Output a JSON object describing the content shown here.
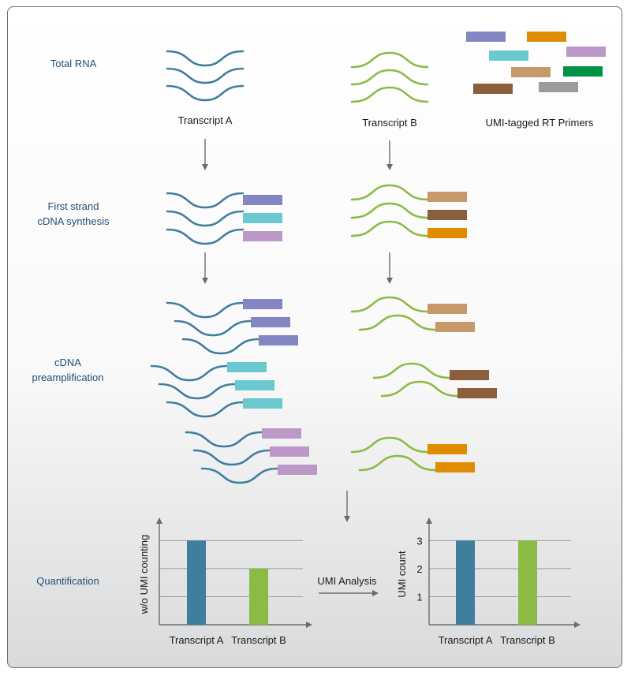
{
  "steps": {
    "total_rna": "Total RNA",
    "first_strand_line1": "First strand",
    "first_strand_line2": "cDNA synthesis",
    "preamp_line1": "cDNA",
    "preamp_line2": "preamplification",
    "quantification": "Quantification"
  },
  "labels": {
    "transcript_a": "Transcript A",
    "transcript_b": "Transcript B",
    "umi_primers": "UMI-tagged RT Primers",
    "umi_analysis": "UMI Analysis"
  },
  "colors": {
    "transcript_a": "#3e7f9d",
    "transcript_b": "#8cbb45",
    "umi_primers": [
      "#8386c2",
      "#e08c00",
      "#6ac8cf",
      "#bb98c8",
      "#c7986c",
      "#009244",
      "#8b5e3c",
      "#9b9b9b"
    ]
  },
  "chart_data": [
    {
      "type": "bar",
      "categories": [
        "Transcript A",
        "Transcript B"
      ],
      "values": [
        3,
        2
      ],
      "xlabel": "",
      "ylabel": "w/o UMI counting",
      "ylim": [
        0,
        3.6
      ],
      "tick_labels": [],
      "grid": true
    },
    {
      "type": "bar",
      "categories": [
        "Transcript A",
        "Transcript B"
      ],
      "values": [
        3,
        3
      ],
      "xlabel": "",
      "ylabel": "UMI count",
      "ylim": [
        0,
        3.6
      ],
      "tick_labels": [
        "1",
        "2",
        "3"
      ],
      "grid": true
    }
  ]
}
